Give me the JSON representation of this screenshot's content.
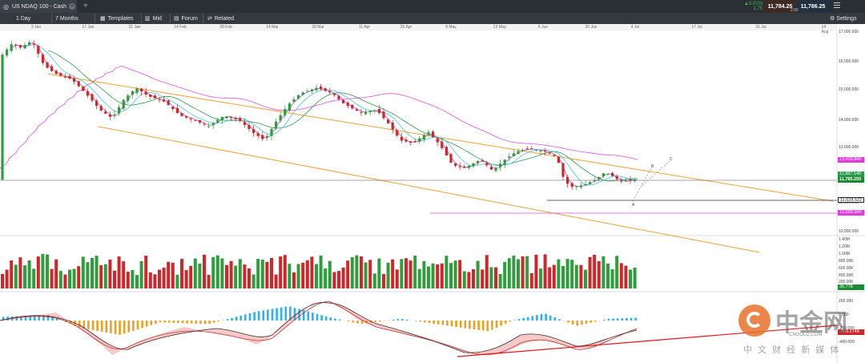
{
  "window": {
    "tab_title": "US NDAQ 100 - Cash",
    "close_icon": "close-icon",
    "new_tab_icon": "plus-icon"
  },
  "quote": {
    "change_pct": "▲0.01%",
    "change_abs": "1.75",
    "bid": "11,784.25",
    "ask": "11,786.25",
    "spread": "2.00",
    "settings": "Settings"
  },
  "toolbar": {
    "interval": "1 Day",
    "range": "7 Months",
    "templates": "Templates",
    "mid": "Mid",
    "forum": "Forum",
    "related": "Related"
  },
  "date_axis": [
    "3 Jan",
    "17 Jan",
    "31 Jan",
    "14 Feb",
    "28 Feb",
    "14 Mar",
    "28 Mar",
    "11 Apr",
    "25 Apr",
    "9 May",
    "23 May",
    "6 Jun",
    "20 Jun",
    "4 Jul",
    "17 Jul",
    "31 Jul",
    "14 Aug"
  ],
  "price_axis": [
    "17,000.000",
    "16,000.000",
    "15,000.000",
    "14,000.000",
    "13,000.000",
    "12,000.000",
    "11,000.000",
    "10,000.000"
  ],
  "price_labels": {
    "ma_top": "13,400.840",
    "ma_mid": "11,987.140",
    "last": "11,785.250",
    "level": "11,028.522",
    "low_line": "10,600.000"
  },
  "volume_axis": [
    "1.40M",
    "1.20M",
    "1.00M",
    "800.00K",
    "600.00K",
    "400.00K",
    "200.00K"
  ],
  "volume_last": "36,778",
  "osc_axis": [
    "200.000",
    "0.000",
    "-200.000",
    "-400.000"
  ],
  "osc_last": "-203.2748",
  "wave_labels": [
    "A",
    "B",
    "C"
  ],
  "watermark": {
    "brand": "中金网",
    "domain": "CNGOLD.COM",
    "tagline": "中 文 财 经 新 媒 体"
  },
  "colors": {
    "up": "#2e9e3c",
    "down": "#d0262a",
    "channel": "#f0a030",
    "ma_pink": "#e050e0",
    "ma_green": "#2a9a4a",
    "ma_cyan": "#40c8e0",
    "macd_pos": "#30b0f0",
    "macd_neg": "#f0a020"
  }
}
